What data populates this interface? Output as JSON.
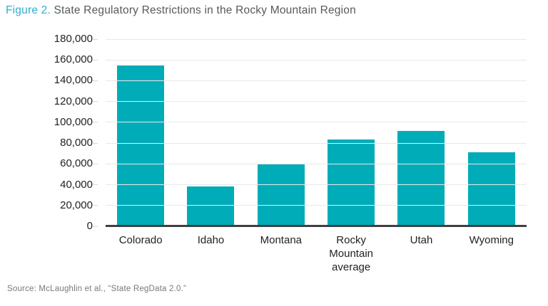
{
  "title": {
    "figure_label": "Figure 2.",
    "text": " State Regulatory Restrictions in the Rocky Mountain Region"
  },
  "source": "Source: McLaughlin et al., “State RegData 2.0.”",
  "colors": {
    "bar": "#00acb8",
    "figure_label": "#33aecb",
    "title_text": "#58595b",
    "axis_text": "#222224",
    "gridline": "#e8e8ea",
    "axis_line": "#3e3f41",
    "source_text": "#77787b"
  },
  "chart_data": {
    "type": "bar",
    "title": "Figure 2. State Regulatory Restrictions in the Rocky Mountain Region",
    "categories": [
      "Colorado",
      "Idaho",
      "Montana",
      "Rocky Mountain average",
      "Utah",
      "Wyoming"
    ],
    "values": [
      155000,
      38500,
      59500,
      83500,
      91500,
      71000
    ],
    "xlabel": "",
    "ylabel": "",
    "ylim": [
      0,
      180000
    ],
    "ytick_step": 20000,
    "ytick_labels": [
      "0",
      "20,000",
      "40,000",
      "60,000",
      "80,000",
      "100,000",
      "120,000",
      "140,000",
      "160,000",
      "180,000"
    ],
    "grid": true,
    "legend": false
  }
}
